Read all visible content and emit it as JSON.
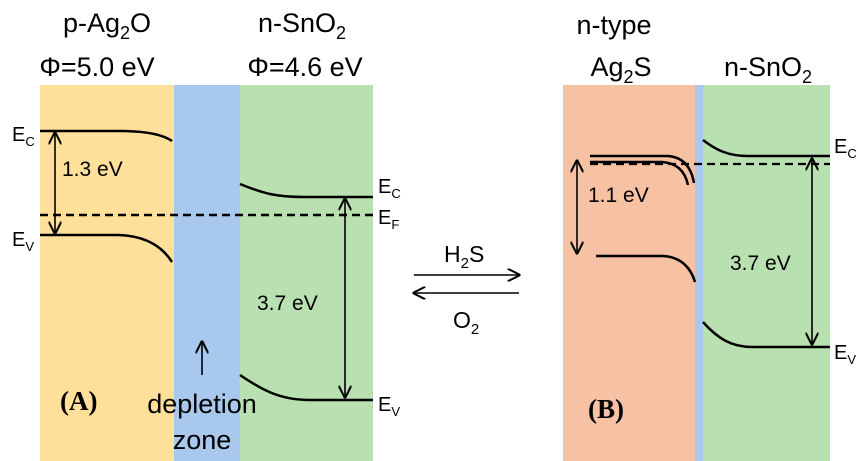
{
  "colors": {
    "p_ag2o": "#FFE09A",
    "depletion": "#A8C8EE",
    "n_sno2": "#B9E0B0",
    "ag2s": "#F7C1A3"
  },
  "panel_a": {
    "left_material": {
      "prefix": "p-Ag",
      "sub": "2",
      "suffix": "O"
    },
    "left_work_function": "Φ=5.0 eV",
    "right_material": {
      "prefix": "n-SnO",
      "sub": "2"
    },
    "right_work_function": "Φ=4.6 eV",
    "ec_left": {
      "main": "E",
      "sub": "C"
    },
    "ev_left": {
      "main": "E",
      "sub": "V"
    },
    "gap_left": "1.3 eV",
    "ec_right": {
      "main": "E",
      "sub": "C"
    },
    "ef_right": {
      "main": "E",
      "sub": "F"
    },
    "ev_right": {
      "main": "E",
      "sub": "V"
    },
    "gap_right": "3.7 eV",
    "depletion_line1": "depletion",
    "depletion_line2": "zone",
    "panel_label": "(A)"
  },
  "reaction": {
    "forward": {
      "prefix": "H",
      "sub": "2",
      "suffix": "S"
    },
    "reverse": {
      "prefix": "O",
      "sub": "2"
    }
  },
  "panel_b": {
    "left_material_line1": "n-type",
    "left_material_line2": {
      "prefix": "Ag",
      "sub": "2",
      "suffix": "S"
    },
    "right_material": {
      "prefix": "n-SnO",
      "sub": "2"
    },
    "gap_left": "1.1 eV",
    "gap_right": "3.7 eV",
    "ec_right": {
      "main": "E",
      "sub": "C"
    },
    "ev_right": {
      "main": "E",
      "sub": "V"
    },
    "panel_label": "(B)"
  }
}
